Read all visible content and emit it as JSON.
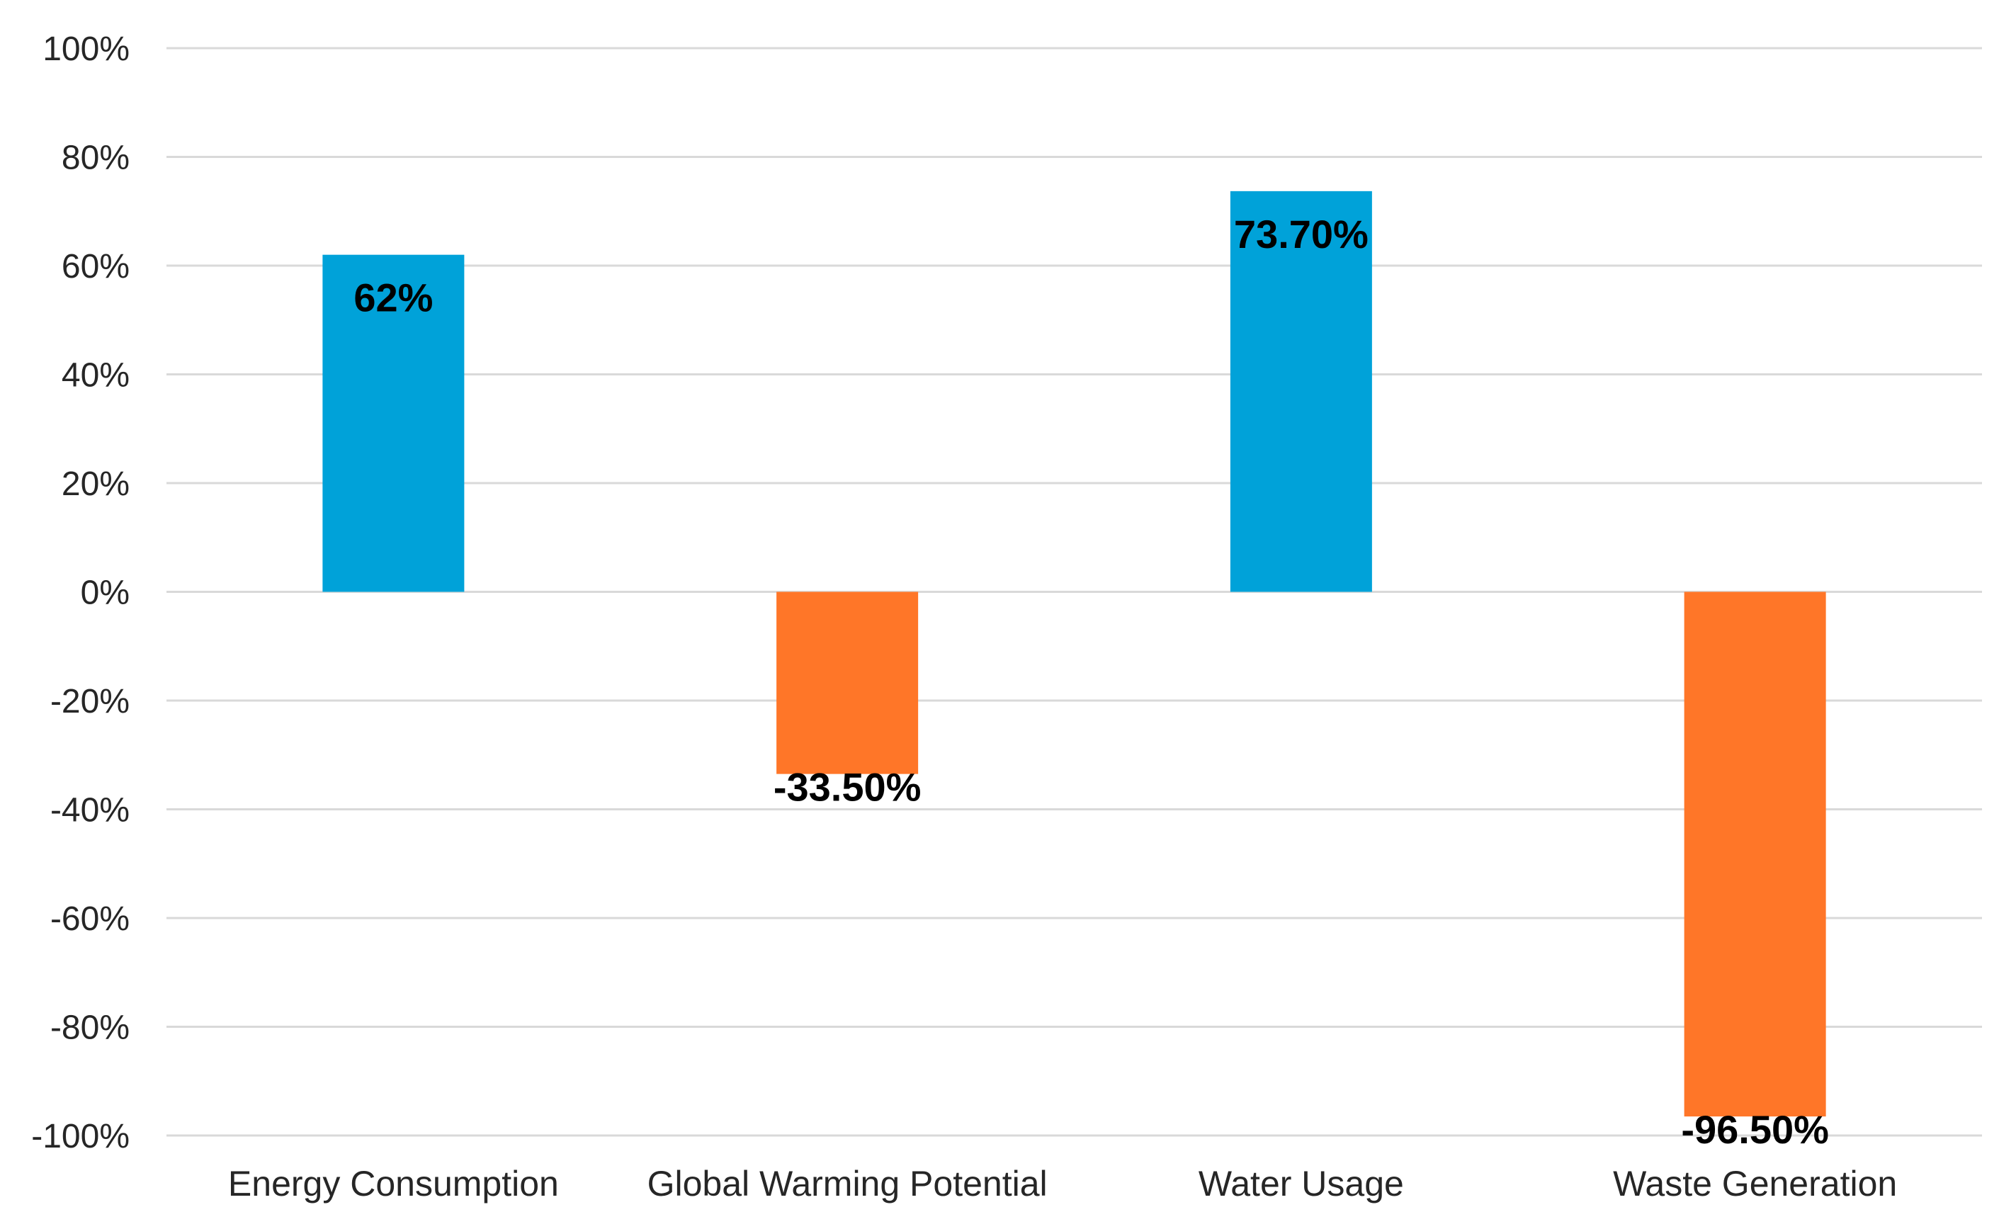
{
  "chart_data": {
    "type": "bar",
    "title": "",
    "xlabel": "",
    "ylabel": "",
    "categories": [
      "Energy Consumption",
      "Global Warming Potential",
      "Water Usage",
      "Waste Generation"
    ],
    "values": [
      62,
      -33.5,
      73.7,
      -96.5
    ],
    "data_labels": [
      "62%",
      "-33.50%",
      "73.70%",
      "-96.50%"
    ],
    "ylim": [
      -100,
      100
    ],
    "y_ticks": [
      100,
      80,
      60,
      40,
      20,
      0,
      -20,
      -40,
      -60,
      -80,
      -100
    ],
    "y_tick_labels": [
      "100%",
      "80%",
      "60%",
      "40%",
      "20%",
      "0%",
      "-20%",
      "-40%",
      "-60%",
      "-80%",
      "-100%"
    ],
    "grid": true,
    "legend": "none",
    "colors": {
      "positive": "#00A2D9",
      "negative": "#FF7628",
      "grid": "#D9D9D9",
      "text": "#262626",
      "data_label": "#000000"
    }
  }
}
